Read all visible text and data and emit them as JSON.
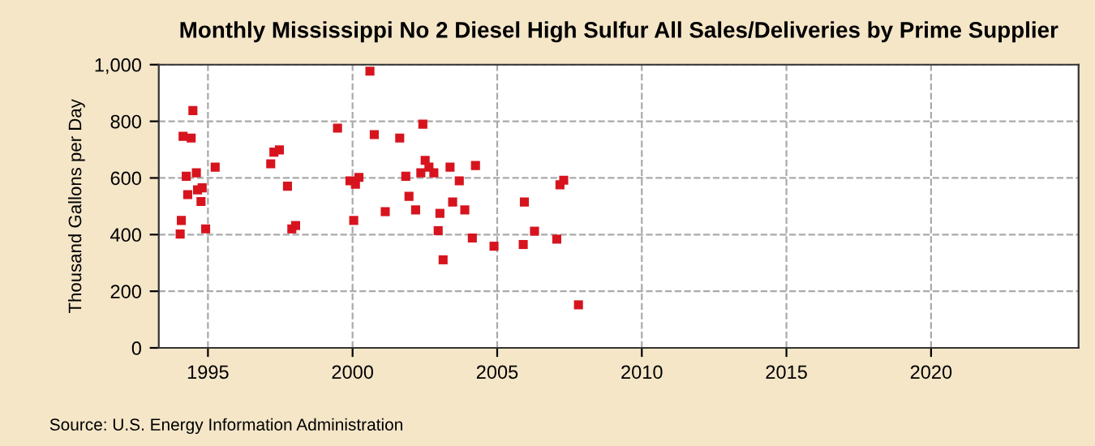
{
  "chart_data": {
    "type": "scatter",
    "title": "Monthly Mississippi No 2 Diesel High Sulfur All Sales/Deliveries by Prime Supplier",
    "ylabel": "Thousand Gallons per Day",
    "annotations": [
      "Source: U.S. Energy Information Administration"
    ],
    "x": [
      1994.48,
      1994.14,
      1994.42,
      1994.25,
      1994.6,
      1994.3,
      1994.64,
      1994.8,
      1994.76,
      1994.08,
      1994.04,
      1994.92,
      1995.25,
      1997.17,
      1997.28,
      1997.47,
      1997.75,
      1998.03,
      1997.9,
      1999.48,
      2000.6,
      2000.75,
      2001.63,
      2002.43,
      1999.91,
      2000.1,
      2000.22,
      2000.04,
      2001.13,
      2001.84,
      2001.95,
      2002.18,
      2002.36,
      2002.51,
      2002.64,
      2002.81,
      2003.02,
      2002.96,
      2003.13,
      2003.37,
      2003.69,
      2003.46,
      2003.88,
      2004.25,
      2004.14,
      2004.89,
      2007.17,
      2007.3,
      2005.94,
      2006.29,
      2005.9,
      2007.06,
      2007.81
    ],
    "series": [
      {
        "color": "#d7141e",
        "values": [
          838,
          747,
          741,
          606,
          618,
          541,
          558,
          565,
          517,
          450,
          402,
          420,
          638,
          650,
          691,
          699,
          571,
          432,
          420,
          776,
          977,
          753,
          741,
          790,
          590,
          578,
          602,
          450,
          481,
          606,
          535,
          487,
          618,
          662,
          638,
          618,
          475,
          414,
          311,
          638,
          590,
          515,
          487,
          644,
          388,
          359,
          576,
          592,
          515,
          412,
          365,
          384,
          152
        ]
      }
    ],
    "marker": "square",
    "grid": true,
    "xlim": [
      1993.3,
      2025.1
    ],
    "xticks": [
      1995,
      2000,
      2005,
      2010,
      2015,
      2020
    ],
    "ylim": [
      0,
      1000
    ],
    "yticks": [
      0,
      200,
      400,
      600,
      800,
      {
        "value": 1000,
        "label": "1,000"
      }
    ]
  }
}
